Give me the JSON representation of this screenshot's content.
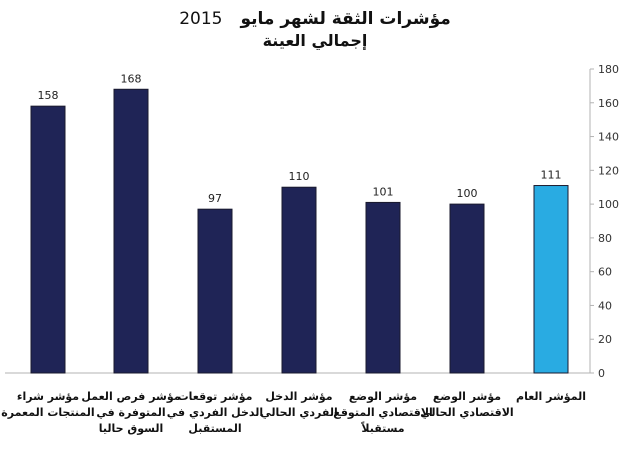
{
  "chart_data": {
    "type": "bar",
    "title": "مؤشرات الثقة لشهر مايو",
    "title_year": "2015",
    "subtitle": "إجمالي العينة",
    "categories": [
      [
        "مؤشر شراء",
        "المنتجات المعمرة"
      ],
      [
        "مؤشر فرص العمل",
        "المتوفرة في",
        "السوق حاليا"
      ],
      [
        "مؤشر توقعات",
        "الدخل الفردي في",
        "المستقبل"
      ],
      [
        "مؤشر الدخل",
        "الفردي الحالي"
      ],
      [
        "مؤشر الوضع",
        "الاقتصادي المتوقع",
        "مستقبلاً"
      ],
      [
        "مؤشر الوضع",
        "الاقتصادي الحالي"
      ],
      [
        "المؤشر العام"
      ]
    ],
    "values": [
      158,
      168,
      97,
      110,
      101,
      100,
      111
    ],
    "data_labels": [
      "158",
      "168",
      "97",
      "110",
      "101",
      "100",
      "111"
    ],
    "bar_colors": [
      "#1f2456",
      "#1f2456",
      "#1f2456",
      "#1f2456",
      "#1f2456",
      "#1f2456",
      "#29abe2"
    ],
    "ylim": [
      0,
      180
    ],
    "yticks": [
      0,
      20,
      40,
      60,
      80,
      100,
      120,
      140,
      160,
      180
    ],
    "yaxis_side": "right",
    "grid": false,
    "legend": "none"
  }
}
